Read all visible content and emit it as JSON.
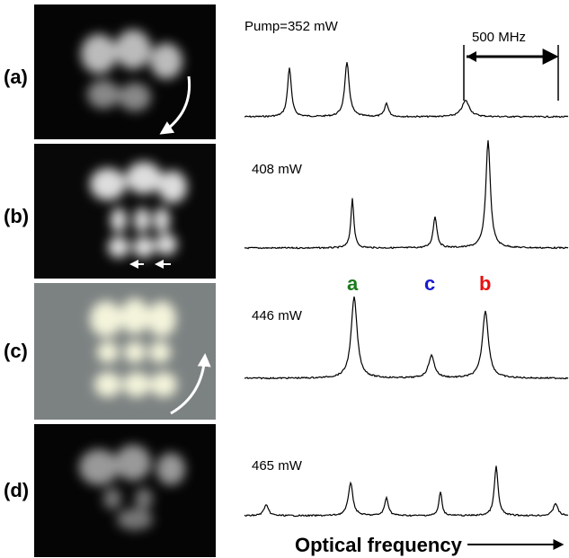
{
  "panels": [
    {
      "label": "(a)",
      "pump": "Pump=352 mW"
    },
    {
      "label": "(b)",
      "pump": "408 mW"
    },
    {
      "label": "(c)",
      "pump": "446 mW"
    },
    {
      "label": "(d)",
      "pump": "465 mW"
    }
  ],
  "scale_bar": "500 MHz",
  "peak_labels": [
    "a",
    "c",
    "b"
  ],
  "x_axis_label": "Optical frequency"
}
